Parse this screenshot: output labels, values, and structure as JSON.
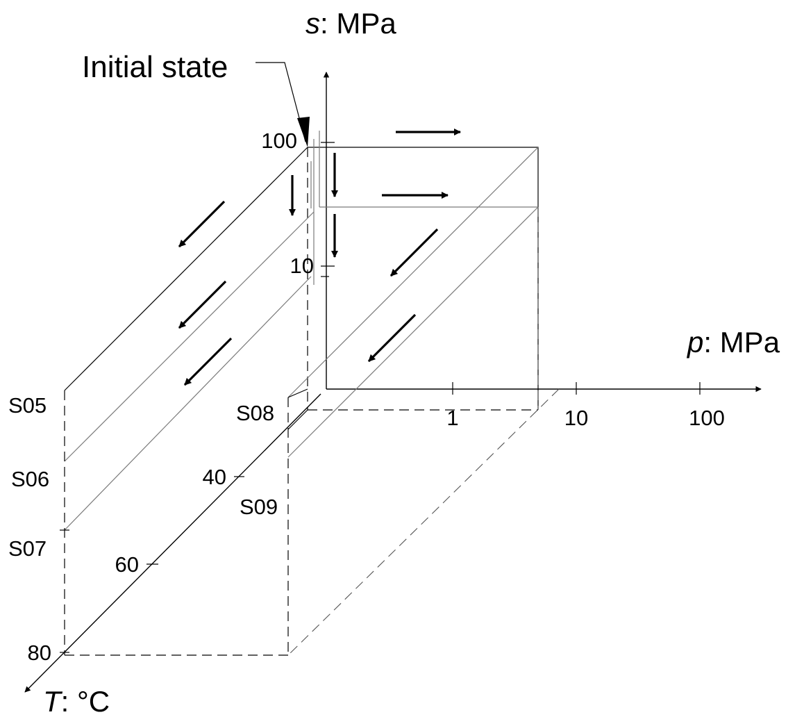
{
  "diagram": {
    "axes": {
      "s": {
        "label_var": "s",
        "label_unit": ": MPa",
        "ticks": [
          "100",
          "10"
        ]
      },
      "p": {
        "label_var": "p",
        "label_unit": ": MPa",
        "ticks": [
          "1",
          "10",
          "100"
        ]
      },
      "T": {
        "label_var": "T",
        "label_unit": ": °C",
        "ticks": [
          "40",
          "60",
          "80"
        ]
      }
    },
    "callout": "Initial state",
    "paths": [
      "S05",
      "S06",
      "S07",
      "S08",
      "S09"
    ]
  }
}
